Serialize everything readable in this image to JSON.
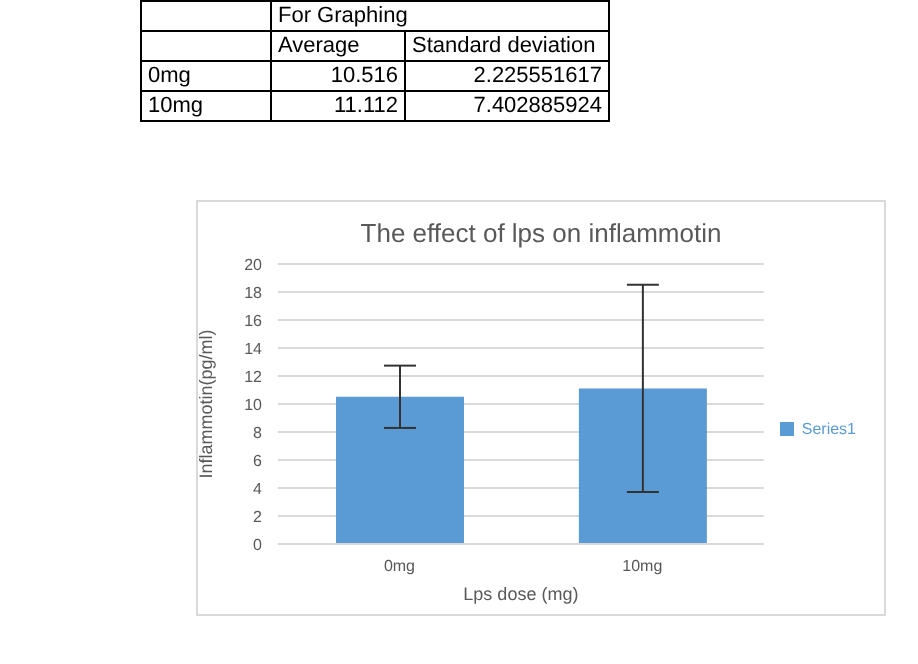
{
  "chart_data": {
    "type": "bar",
    "title": "The effect of lps on inflammotin",
    "xlabel": "Lps dose (mg)",
    "ylabel": "Inflammotin(pg/ml)",
    "categories": [
      "0mg",
      "10mg"
    ],
    "series": [
      {
        "name": "Series1",
        "color": "#5b9bd5",
        "values": [
          10.516,
          11.112
        ],
        "errors": [
          2.225551617,
          7.402885924
        ]
      }
    ],
    "ylim": [
      0,
      20
    ],
    "yticks": [
      0,
      2,
      4,
      6,
      8,
      10,
      12,
      14,
      16,
      18,
      20
    ],
    "grid": "y",
    "legend": "right",
    "annotations": [
      "For Graphing",
      "Average",
      "Standard deviation",
      "10.516",
      "2.225551617",
      "11.112",
      "7.402885924"
    ]
  }
}
